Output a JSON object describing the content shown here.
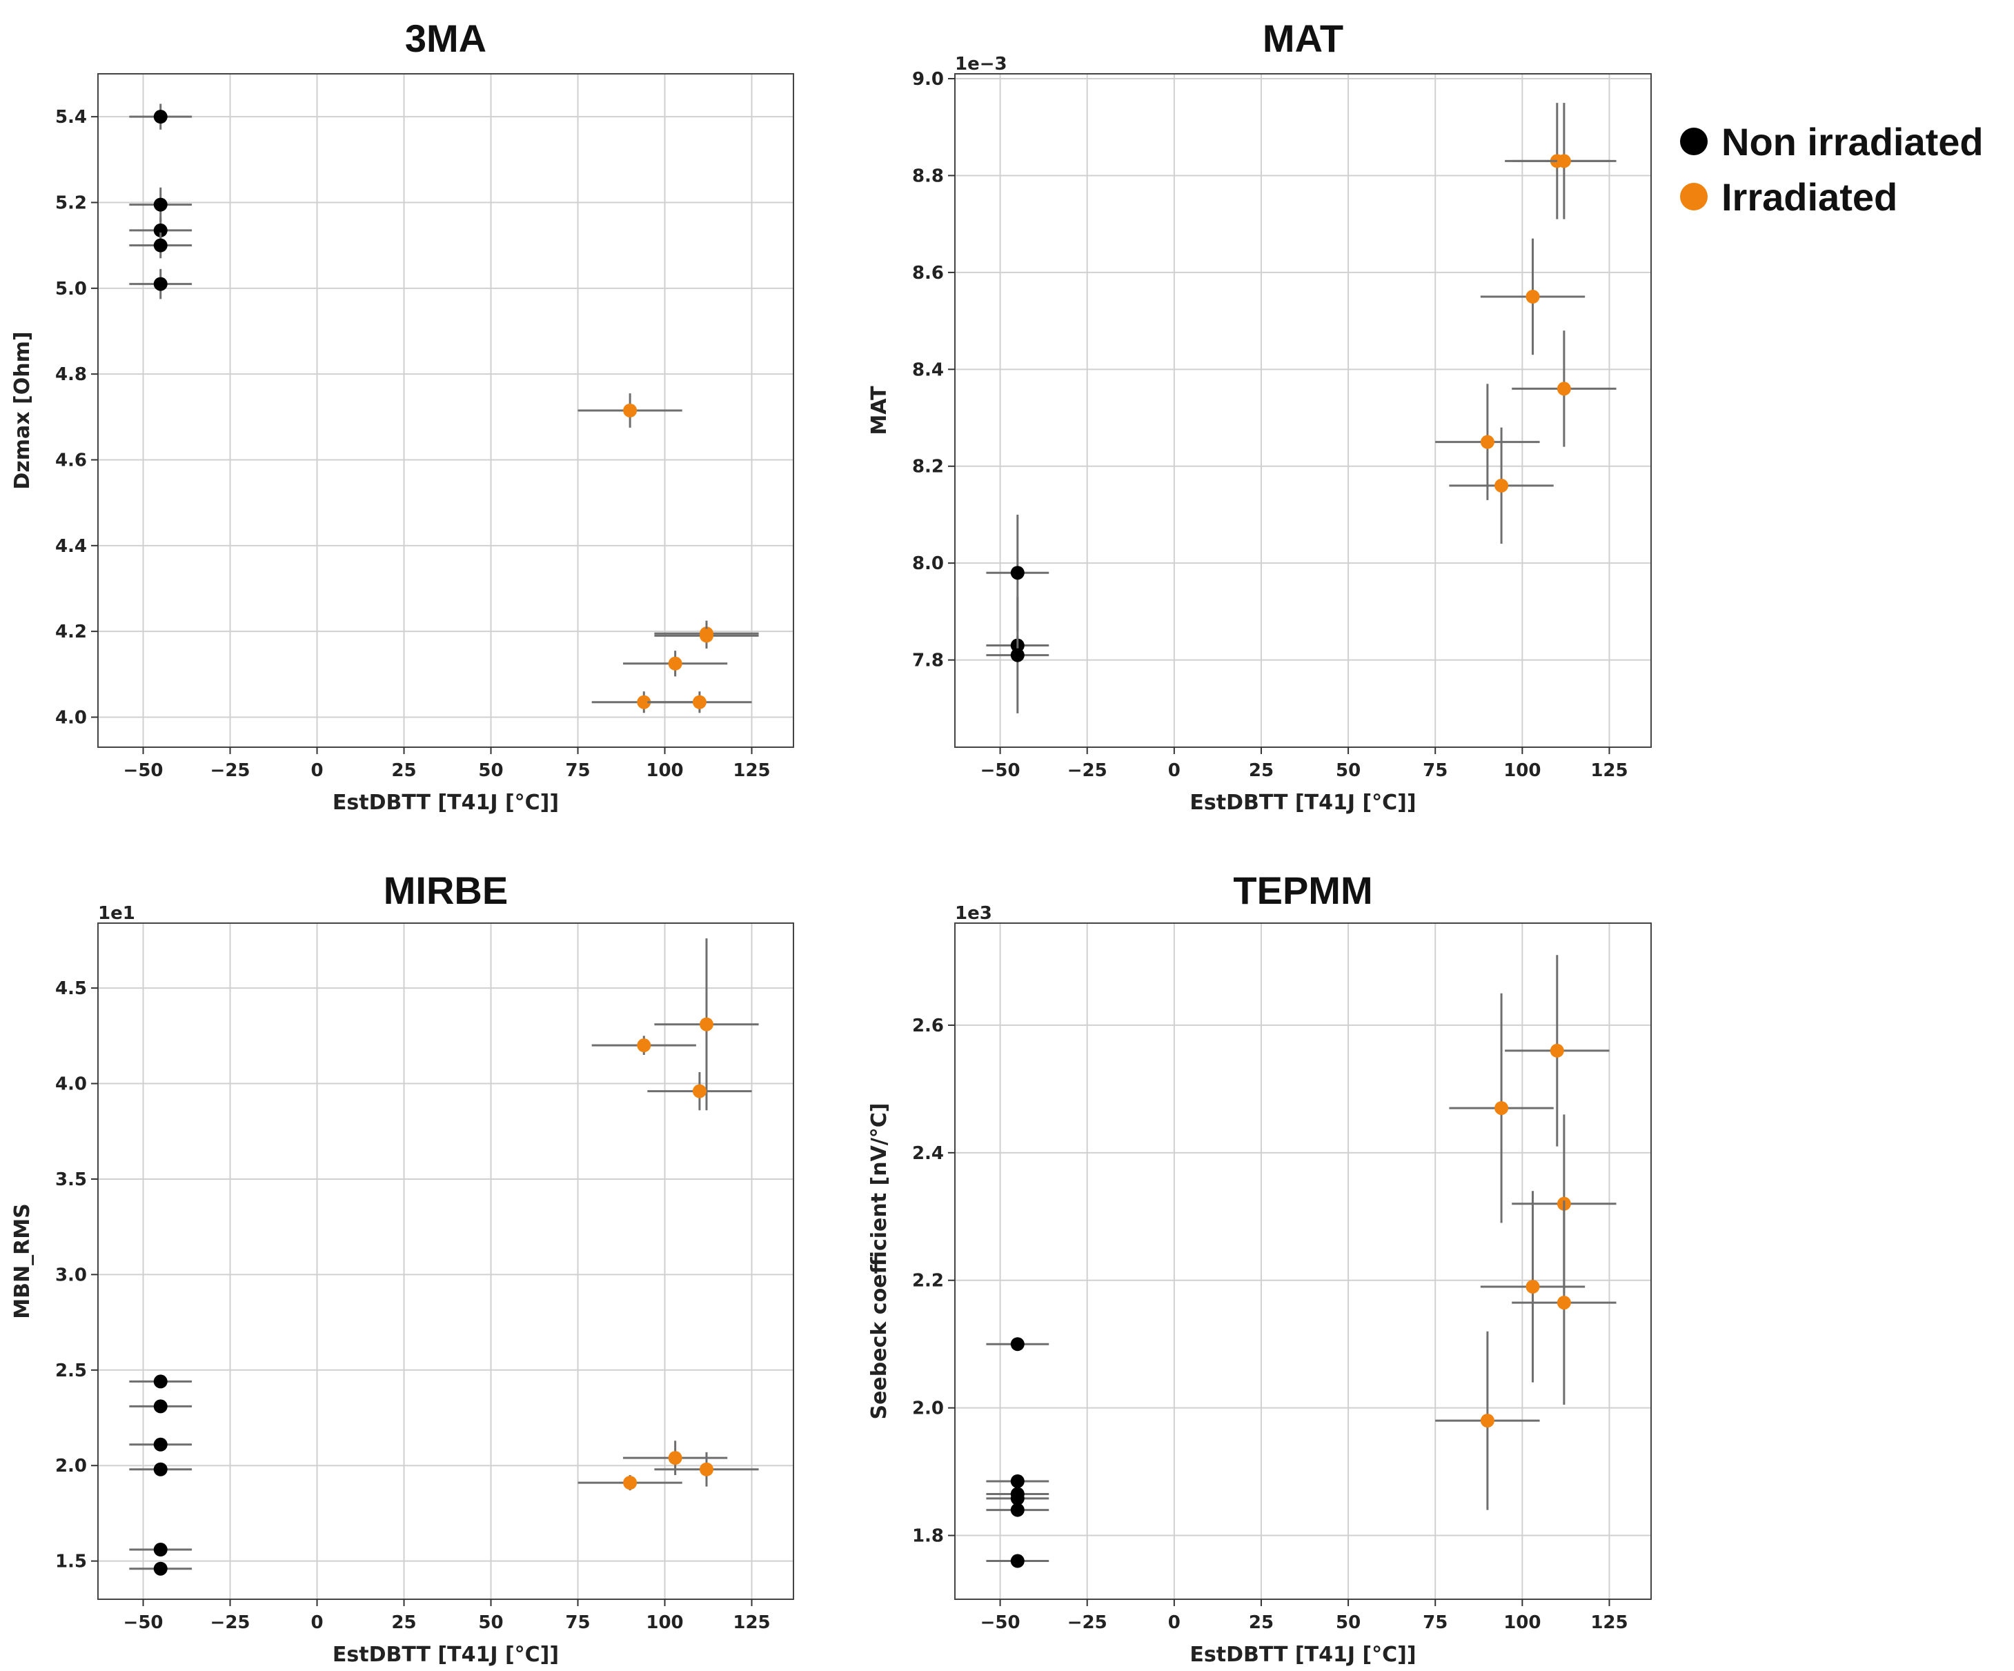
{
  "legend": {
    "placement": "top-right",
    "entries": [
      {
        "label": "Non irradiated",
        "color": "#000000"
      },
      {
        "label": "Irradiated",
        "color": "#f0820f"
      }
    ]
  },
  "chart_data": [
    {
      "type": "scatter",
      "title": "3MA",
      "xlabel": "EstDBTT [T41J [°C]]",
      "ylabel": "Dzmax [Ohm]",
      "offset_label": "",
      "xlim": [
        -63,
        137
      ],
      "ylim": [
        3.93,
        5.5
      ],
      "xticks": [
        -50,
        -25,
        0,
        25,
        50,
        75,
        100,
        125
      ],
      "xtick_labels": [
        "−50",
        "−25",
        "0",
        "25",
        "50",
        "75",
        "100",
        "125"
      ],
      "yticks": [
        4.0,
        4.2,
        4.4,
        4.6,
        4.8,
        5.0,
        5.2,
        5.4
      ],
      "ytick_labels": [
        "4.0",
        "4.2",
        "4.4",
        "4.6",
        "4.8",
        "5.0",
        "5.2",
        "5.4"
      ],
      "grid": true,
      "series": [
        {
          "name": "Non irradiated",
          "color": "#000000",
          "points": [
            {
              "x": -45,
              "y": 5.4,
              "xerr": 9,
              "yerr": 0.03
            },
            {
              "x": -45,
              "y": 5.195,
              "xerr": 9,
              "yerr": 0.04
            },
            {
              "x": -45,
              "y": 5.135,
              "xerr": 9,
              "yerr": 0.03
            },
            {
              "x": -45,
              "y": 5.1,
              "xerr": 9,
              "yerr": 0.03
            },
            {
              "x": -45,
              "y": 5.01,
              "xerr": 9,
              "yerr": 0.035
            }
          ]
        },
        {
          "name": "Irradiated",
          "color": "#f0820f",
          "points": [
            {
              "x": 90,
              "y": 4.715,
              "xerr": 15,
              "yerr": 0.04
            },
            {
              "x": 112,
              "y": 4.195,
              "xerr": 15,
              "yerr": 0.03
            },
            {
              "x": 112,
              "y": 4.19,
              "xerr": 15,
              "yerr": 0.03
            },
            {
              "x": 103,
              "y": 4.125,
              "xerr": 15,
              "yerr": 0.03
            },
            {
              "x": 94,
              "y": 4.035,
              "xerr": 15,
              "yerr": 0.025
            },
            {
              "x": 110,
              "y": 4.035,
              "xerr": 15,
              "yerr": 0.025
            }
          ]
        }
      ]
    },
    {
      "type": "scatter",
      "title": "MAT",
      "xlabel": "EstDBTT [T41J [°C]]",
      "ylabel": "MAT",
      "offset_label": "1e−3",
      "xlim": [
        -63,
        137
      ],
      "ylim": [
        7.62,
        9.01
      ],
      "xticks": [
        -50,
        -25,
        0,
        25,
        50,
        75,
        100,
        125
      ],
      "xtick_labels": [
        "−50",
        "−25",
        "0",
        "25",
        "50",
        "75",
        "100",
        "125"
      ],
      "yticks": [
        7.8,
        8.0,
        8.2,
        8.4,
        8.6,
        8.8,
        9.0
      ],
      "ytick_labels": [
        "7.8",
        "8.0",
        "8.2",
        "8.4",
        "8.6",
        "8.8",
        "9.0"
      ],
      "grid": true,
      "series": [
        {
          "name": "Non irradiated",
          "color": "#000000",
          "points": [
            {
              "x": -45,
              "y": 7.98,
              "xerr": 9,
              "yerr": 0.12
            },
            {
              "x": -45,
              "y": 7.83,
              "xerr": 9,
              "yerr": 0.02
            },
            {
              "x": -45,
              "y": 7.81,
              "xerr": 9,
              "yerr": 0.12
            }
          ]
        },
        {
          "name": "Irradiated",
          "color": "#f0820f",
          "points": [
            {
              "x": 110,
              "y": 8.83,
              "xerr": 15,
              "yerr": 0.12
            },
            {
              "x": 112,
              "y": 8.83,
              "xerr": 15,
              "yerr": 0.12
            },
            {
              "x": 103,
              "y": 8.55,
              "xerr": 15,
              "yerr": 0.12
            },
            {
              "x": 112,
              "y": 8.36,
              "xerr": 15,
              "yerr": 0.12
            },
            {
              "x": 90,
              "y": 8.25,
              "xerr": 15,
              "yerr": 0.12
            },
            {
              "x": 94,
              "y": 8.16,
              "xerr": 15,
              "yerr": 0.12
            }
          ]
        }
      ]
    },
    {
      "type": "scatter",
      "title": "MIRBE",
      "xlabel": "EstDBTT [T41J [°C]]",
      "ylabel": "MBN_RMS",
      "offset_label": "1e1",
      "xlim": [
        -63,
        137
      ],
      "ylim": [
        1.3,
        4.84
      ],
      "xticks": [
        -50,
        -25,
        0,
        25,
        50,
        75,
        100,
        125
      ],
      "xtick_labels": [
        "−50",
        "−25",
        "0",
        "25",
        "50",
        "75",
        "100",
        "125"
      ],
      "yticks": [
        1.5,
        2.0,
        2.5,
        3.0,
        3.5,
        4.0,
        4.5
      ],
      "ytick_labels": [
        "1.5",
        "2.0",
        "2.5",
        "3.0",
        "3.5",
        "4.0",
        "4.5"
      ],
      "grid": true,
      "series": [
        {
          "name": "Non irradiated",
          "color": "#000000",
          "points": [
            {
              "x": -45,
              "y": 2.44,
              "xerr": 9,
              "yerr": 0
            },
            {
              "x": -45,
              "y": 2.31,
              "xerr": 9,
              "yerr": 0
            },
            {
              "x": -45,
              "y": 2.11,
              "xerr": 9,
              "yerr": 0
            },
            {
              "x": -45,
              "y": 1.98,
              "xerr": 9,
              "yerr": 0
            },
            {
              "x": -45,
              "y": 1.56,
              "xerr": 9,
              "yerr": 0
            },
            {
              "x": -45,
              "y": 1.46,
              "xerr": 9,
              "yerr": 0
            }
          ]
        },
        {
          "name": "Irradiated",
          "color": "#f0820f",
          "points": [
            {
              "x": 112,
              "y": 4.31,
              "xerr": 15,
              "yerr": 0.45
            },
            {
              "x": 94,
              "y": 4.2,
              "xerr": 15,
              "yerr": 0.05
            },
            {
              "x": 110,
              "y": 3.96,
              "xerr": 15,
              "yerr": 0.1
            },
            {
              "x": 103,
              "y": 2.04,
              "xerr": 15,
              "yerr": 0.09
            },
            {
              "x": 112,
              "y": 1.98,
              "xerr": 15,
              "yerr": 0.09
            },
            {
              "x": 90,
              "y": 1.91,
              "xerr": 15,
              "yerr": 0.04
            }
          ]
        }
      ]
    },
    {
      "type": "scatter",
      "title": "TEPMM",
      "xlabel": "EstDBTT [T41J [°C]]",
      "ylabel": "Seebeck coefficient [nV/°C]",
      "offset_label": "1e3",
      "xlim": [
        -63,
        137
      ],
      "ylim": [
        1.7,
        2.76
      ],
      "xticks": [
        -50,
        -25,
        0,
        25,
        50,
        75,
        100,
        125
      ],
      "xtick_labels": [
        "−50",
        "−25",
        "0",
        "25",
        "50",
        "75",
        "100",
        "125"
      ],
      "yticks": [
        1.8,
        2.0,
        2.2,
        2.4,
        2.6
      ],
      "ytick_labels": [
        "1.8",
        "2.0",
        "2.2",
        "2.4",
        "2.6"
      ],
      "grid": true,
      "series": [
        {
          "name": "Non irradiated",
          "color": "#000000",
          "points": [
            {
              "x": -45,
              "y": 2.1,
              "xerr": 9,
              "yerr": 0
            },
            {
              "x": -45,
              "y": 1.885,
              "xerr": 9,
              "yerr": 0
            },
            {
              "x": -45,
              "y": 1.865,
              "xerr": 9,
              "yerr": 0
            },
            {
              "x": -45,
              "y": 1.858,
              "xerr": 9,
              "yerr": 0
            },
            {
              "x": -45,
              "y": 1.84,
              "xerr": 9,
              "yerr": 0
            },
            {
              "x": -45,
              "y": 1.76,
              "xerr": 9,
              "yerr": 0
            }
          ]
        },
        {
          "name": "Irradiated",
          "color": "#f0820f",
          "points": [
            {
              "x": 110,
              "y": 2.56,
              "xerr": 15,
              "yerr": 0.15
            },
            {
              "x": 94,
              "y": 2.47,
              "xerr": 15,
              "yerr": 0.18
            },
            {
              "x": 112,
              "y": 2.32,
              "xerr": 15,
              "yerr": 0.14
            },
            {
              "x": 103,
              "y": 2.19,
              "xerr": 15,
              "yerr": 0.15
            },
            {
              "x": 112,
              "y": 2.165,
              "xerr": 15,
              "yerr": 0.16
            },
            {
              "x": 90,
              "y": 1.98,
              "xerr": 15,
              "yerr": 0.14
            }
          ]
        }
      ]
    }
  ]
}
